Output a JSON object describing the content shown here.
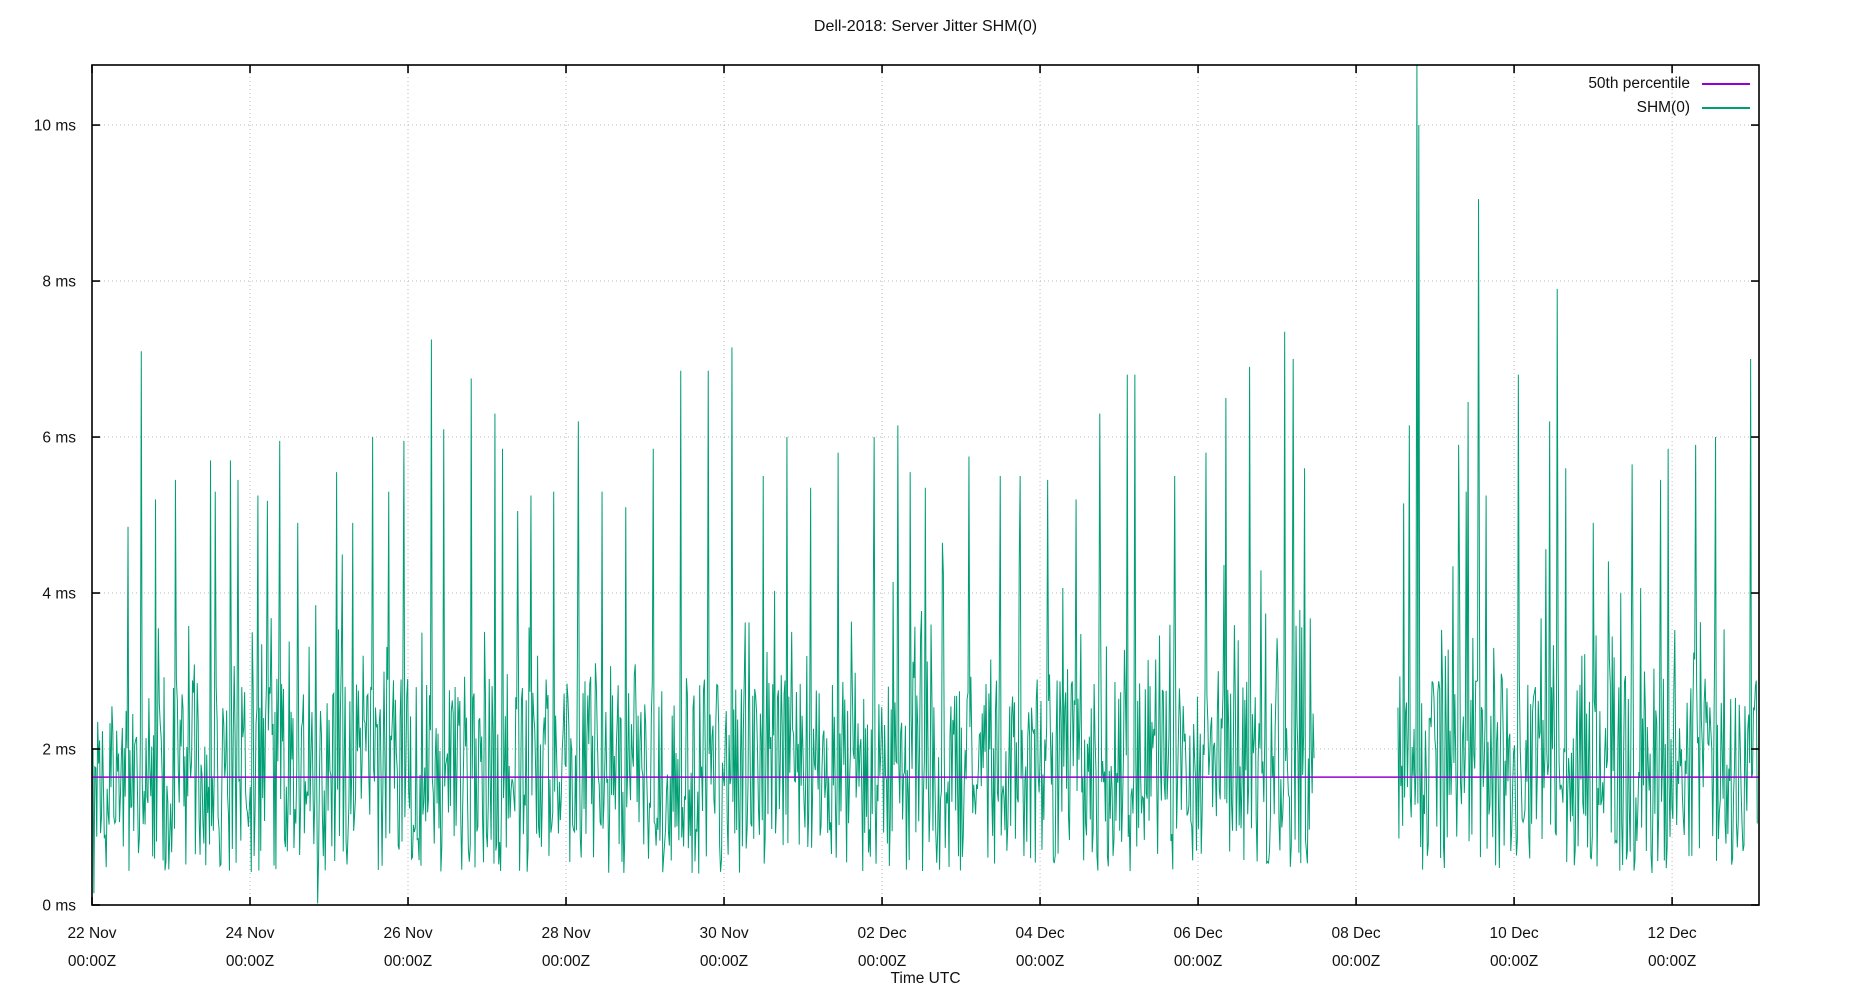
{
  "title": "Dell-2018: Server Jitter SHM(0)",
  "chart_data": {
    "type": "line",
    "title": "Dell-2018: Server Jitter SHM(0)",
    "xlabel": "Time UTC",
    "ylabel": "",
    "grid": {
      "visible": true,
      "style": "dotted",
      "color": "#b9b9b9"
    },
    "x_axis": {
      "unit": "days since 22 Nov 00:00Z",
      "domain": [
        0,
        21.1
      ],
      "major_ticks": [
        {
          "day": 0,
          "line1": "22 Nov",
          "line2": "00:00Z"
        },
        {
          "day": 2,
          "line1": "24 Nov",
          "line2": "00:00Z"
        },
        {
          "day": 4,
          "line1": "26 Nov",
          "line2": "00:00Z"
        },
        {
          "day": 6,
          "line1": "28 Nov",
          "line2": "00:00Z"
        },
        {
          "day": 8,
          "line1": "30 Nov",
          "line2": "00:00Z"
        },
        {
          "day": 10,
          "line1": "02 Dec",
          "line2": "00:00Z"
        },
        {
          "day": 12,
          "line1": "04 Dec",
          "line2": "00:00Z"
        },
        {
          "day": 14,
          "line1": "06 Dec",
          "line2": "00:00Z"
        },
        {
          "day": 16,
          "line1": "08 Dec",
          "line2": "00:00Z"
        },
        {
          "day": 18,
          "line1": "10 Dec",
          "line2": "00:00Z"
        },
        {
          "day": 20,
          "line1": "12 Dec",
          "line2": "00:00Z"
        }
      ]
    },
    "y_axis": {
      "domain": [
        0,
        10.77
      ],
      "ticks": [
        {
          "value": 0,
          "label": "0 ms"
        },
        {
          "value": 2,
          "label": "2 ms"
        },
        {
          "value": 4,
          "label": "4 ms"
        },
        {
          "value": 6,
          "label": "6 ms"
        },
        {
          "value": 8,
          "label": "8 ms"
        },
        {
          "value": 10,
          "label": "10 ms"
        }
      ]
    },
    "legend": {
      "position": "top-right",
      "entries": [
        {
          "label": "50th percentile",
          "color": "#9400d3"
        },
        {
          "label": "SHM(0)",
          "color": "#009e73"
        }
      ]
    },
    "series": [
      {
        "name": "50th percentile",
        "type": "hline",
        "value_ms": 1.64,
        "color": "#9400d3",
        "x_range_days": [
          0,
          21.1
        ]
      },
      {
        "name": "SHM(0)",
        "type": "noisy-line",
        "color": "#009e73",
        "segments": [
          {
            "start_day": 0,
            "end_day": 15.48
          },
          {
            "start_day": 16.53,
            "end_day": 21.08
          }
        ],
        "noise": {
          "seed": 1337,
          "sample_interval_days": 0.012,
          "band_min_ms": 0.4,
          "band_uniform_span_ms": 2.5,
          "tail_probability": 0.3,
          "tail_mean_ms": 0.6,
          "tail_cap_ms": 5.3,
          "median_ms": 1.64
        },
        "notable_points_day_ms": [
          [
            0.02,
            0.15
          ],
          [
            0.45,
            4.85
          ],
          [
            0.62,
            7.1
          ],
          [
            0.8,
            5.2
          ],
          [
            1.05,
            5.45
          ],
          [
            1.5,
            5.7
          ],
          [
            1.75,
            5.7
          ],
          [
            1.85,
            5.45
          ],
          [
            2.1,
            5.25
          ],
          [
            2.37,
            5.95
          ],
          [
            2.6,
            4.9
          ],
          [
            2.86,
            0.02
          ],
          [
            3.1,
            5.55
          ],
          [
            3.3,
            4.9
          ],
          [
            3.55,
            6.0
          ],
          [
            3.75,
            5.3
          ],
          [
            3.95,
            5.95
          ],
          [
            4.3,
            7.25
          ],
          [
            4.45,
            6.1
          ],
          [
            4.8,
            6.75
          ],
          [
            5.1,
            6.3
          ],
          [
            5.2,
            5.85
          ],
          [
            5.55,
            5.25
          ],
          [
            5.85,
            5.3
          ],
          [
            6.15,
            6.2
          ],
          [
            6.45,
            5.3
          ],
          [
            6.75,
            5.1
          ],
          [
            7.1,
            5.85
          ],
          [
            7.45,
            6.85
          ],
          [
            7.8,
            6.85
          ],
          [
            8.1,
            7.15
          ],
          [
            8.5,
            5.5
          ],
          [
            8.8,
            6.0
          ],
          [
            9.1,
            5.35
          ],
          [
            9.45,
            5.8
          ],
          [
            9.9,
            6.0
          ],
          [
            10.2,
            6.15
          ],
          [
            10.35,
            5.55
          ],
          [
            10.55,
            5.35
          ],
          [
            11.1,
            5.75
          ],
          [
            11.5,
            5.5
          ],
          [
            11.75,
            5.5
          ],
          [
            12.1,
            5.45
          ],
          [
            12.45,
            5.2
          ],
          [
            12.75,
            6.3
          ],
          [
            13.1,
            6.8
          ],
          [
            13.2,
            6.8
          ],
          [
            13.7,
            5.5
          ],
          [
            14.1,
            5.8
          ],
          [
            14.35,
            6.5
          ],
          [
            14.65,
            6.9
          ],
          [
            15.1,
            7.35
          ],
          [
            15.2,
            7.0
          ],
          [
            15.35,
            5.6
          ],
          [
            16.6,
            5.15
          ],
          [
            16.68,
            6.15
          ],
          [
            16.77,
            10.9
          ],
          [
            16.8,
            10.0
          ],
          [
            17.3,
            5.9
          ],
          [
            17.42,
            6.45
          ],
          [
            17.55,
            9.05
          ],
          [
            17.65,
            5.25
          ],
          [
            18.05,
            6.8
          ],
          [
            18.45,
            6.2
          ],
          [
            18.55,
            7.9
          ],
          [
            18.65,
            5.6
          ],
          [
            19.0,
            4.9
          ],
          [
            19.5,
            5.65
          ],
          [
            19.85,
            5.45
          ],
          [
            19.95,
            5.85
          ],
          [
            20.3,
            5.9
          ],
          [
            20.55,
            6.0
          ],
          [
            21.0,
            7.0
          ]
        ]
      }
    ]
  },
  "colors": {
    "background": "#ffffff",
    "border": "#000000",
    "grid": "#b9b9b9",
    "text": "#111111",
    "percentile_line": "#9400d3",
    "shm0_line": "#009e73"
  }
}
